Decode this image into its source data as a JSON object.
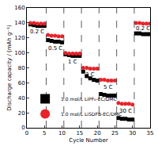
{
  "chart_data": {
    "type": "scatter",
    "x_label": "Cycle Number",
    "y_label": "Discharge capacity / (mAh g⁻¹)",
    "x": [
      1,
      2,
      3,
      4,
      5,
      6,
      7,
      8,
      9,
      10,
      11,
      12,
      13,
      14,
      15,
      16,
      17,
      18,
      19,
      20,
      21,
      22,
      23,
      24,
      25,
      26,
      27,
      28,
      29,
      30,
      31,
      32,
      33,
      34,
      35
    ],
    "series": [
      {
        "name": "1.0 mol/L LiPF₆-EC/DMC",
        "color": "#000000",
        "marker": "square",
        "values": [
          138,
          137,
          136,
          136,
          136,
          117,
          116,
          115,
          115,
          114,
          98,
          97,
          96,
          96,
          96,
          75,
          69,
          66,
          64,
          63,
          45,
          44,
          43,
          43,
          43,
          13,
          12,
          12,
          11,
          11,
          126,
          126,
          125,
          125,
          125
        ]
      },
      {
        "name": "1.0 mol/L LiSDFB-EC/DMC",
        "color": "#e8232a",
        "marker": "circle",
        "values": [
          140,
          140,
          139,
          139,
          139,
          124,
          123,
          123,
          122,
          122,
          100,
          99,
          99,
          99,
          99,
          80,
          80,
          79,
          79,
          79,
          64,
          64,
          63,
          63,
          63,
          33,
          32,
          32,
          32,
          31,
          140,
          140,
          139,
          139,
          139
        ]
      }
    ],
    "annotations": [
      {
        "text": "0.2 C",
        "x": 3,
        "y": 128
      },
      {
        "text": "0.5 C",
        "x": 8,
        "y": 106
      },
      {
        "text": "1 C",
        "x": 13,
        "y": 88
      },
      {
        "text": "2 C",
        "x": 18,
        "y": 71
      },
      {
        "text": "5 C",
        "x": 23,
        "y": 54
      },
      {
        "text": "30 C",
        "x": 28,
        "y": 22
      },
      {
        "text": "0.2 C",
        "x": 33,
        "y": 132
      }
    ],
    "dividers": [
      5.5,
      10.5,
      15.5,
      20.5,
      25.5,
      30.5
    ],
    "xlim": [
      0,
      35
    ],
    "xticks": [
      0,
      5,
      10,
      15,
      20,
      25,
      30,
      35
    ],
    "ylim": [
      0,
      160
    ],
    "yticks": [
      0,
      20,
      40,
      60,
      80,
      100,
      120,
      140,
      160
    ],
    "grid": false,
    "legend": "lower left"
  }
}
